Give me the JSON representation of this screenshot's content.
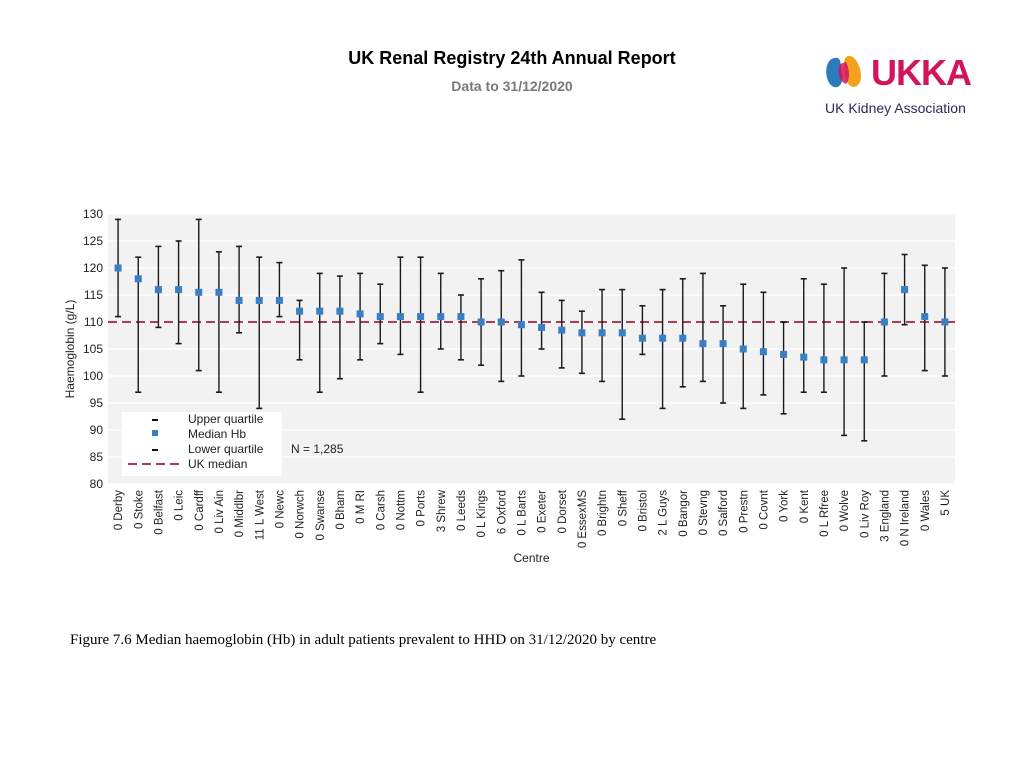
{
  "header": {
    "title": "UK Renal Registry 24th Annual Report",
    "subtitle": "Data to 31/12/2020"
  },
  "logo": {
    "text": "UKKA",
    "sub": "UK Kidney Association",
    "colors": {
      "blue": "#2b7bbf",
      "pink": "#d2145a",
      "orange": "#f4a21d",
      "navy": "#2b2b5a"
    }
  },
  "caption": "Figure 7.6 Median haemoglobin (Hb) in adult patients prevalent to HHD on 31/12/2020 by centre",
  "chart_data": {
    "type": "scatter",
    "title": "",
    "xlabel": "Centre",
    "ylabel": "Haemoglobin (g/L)",
    "ylim": [
      80,
      130
    ],
    "yticks": [
      80,
      85,
      90,
      95,
      100,
      105,
      110,
      115,
      120,
      125,
      130
    ],
    "grid": true,
    "categories": [
      "0 Derby",
      "0 Stoke",
      "0 Belfast",
      "0 Leic",
      "0 Cardff",
      "0 Liv Ain",
      "0 Middlbr",
      "11 L West",
      "0 Newc",
      "0 Norwch",
      "0 Swanse",
      "0 Bham",
      "0 M RI",
      "0 Carsh",
      "0 Nottm",
      "0 Ports",
      "3 Shrew",
      "0 Leeds",
      "0 L Kings",
      "6 Oxford",
      "0 L Barts",
      "0 Exeter",
      "0 Dorset",
      "0 EssexMS",
      "0 Brightn",
      "0 Sheff",
      "0 Bristol",
      "2 L Guys",
      "0 Bangor",
      "0 Stevng",
      "0 Salford",
      "0 Prestn",
      "0 Covnt",
      "0 York",
      "0 Kent",
      "0 L Rfree",
      "0 Wolve",
      "0 Liv Roy",
      "3 England",
      "0 N Ireland",
      "0 Wales",
      "5 UK"
    ],
    "series": [
      {
        "name": "Upper quartile",
        "values": [
          129,
          122,
          124,
          125,
          129,
          123,
          124,
          122,
          121,
          114,
          119,
          118.5,
          119,
          117,
          122,
          122,
          119,
          115,
          118,
          119.5,
          121.5,
          115.5,
          114,
          112,
          116,
          116,
          113,
          116,
          118,
          119,
          113,
          117,
          115.5,
          110,
          118,
          117,
          120,
          110,
          119,
          122.5,
          120.5,
          120
        ]
      },
      {
        "name": "Median Hb",
        "values": [
          120,
          118,
          116,
          116,
          115.5,
          115.5,
          114,
          114,
          114,
          112,
          112,
          112,
          111.5,
          111,
          111,
          111,
          111,
          111,
          110,
          110,
          109.5,
          109,
          108.5,
          108,
          108,
          108,
          107,
          107,
          107,
          106,
          106,
          105,
          104.5,
          104,
          103.5,
          103,
          103,
          103,
          110,
          116,
          111,
          110
        ]
      },
      {
        "name": "Lower quartile",
        "values": [
          111,
          97,
          109,
          106,
          101,
          97,
          108,
          94,
          111,
          103,
          97,
          99.5,
          103,
          106,
          104,
          97,
          105,
          103,
          102,
          99,
          100,
          105,
          101.5,
          100.5,
          99,
          92,
          104,
          94,
          98,
          99,
          95,
          94,
          96.5,
          93,
          97,
          97,
          89,
          88,
          100,
          109.5,
          101,
          100
        ]
      }
    ],
    "reference_lines": [
      {
        "name": "UK median",
        "value": 110
      }
    ],
    "legend": [
      "Upper quartile",
      "Median Hb",
      "Lower quartile",
      "UK median"
    ],
    "legend_position": "bottom-left",
    "annotation": "N = 1,285",
    "colors": {
      "median": "#3a7fc1",
      "whisker": "#1a1a1a",
      "uk_median": "#b03a55",
      "plot_bg": "#f2f2f2",
      "grid": "#ffffff"
    }
  }
}
